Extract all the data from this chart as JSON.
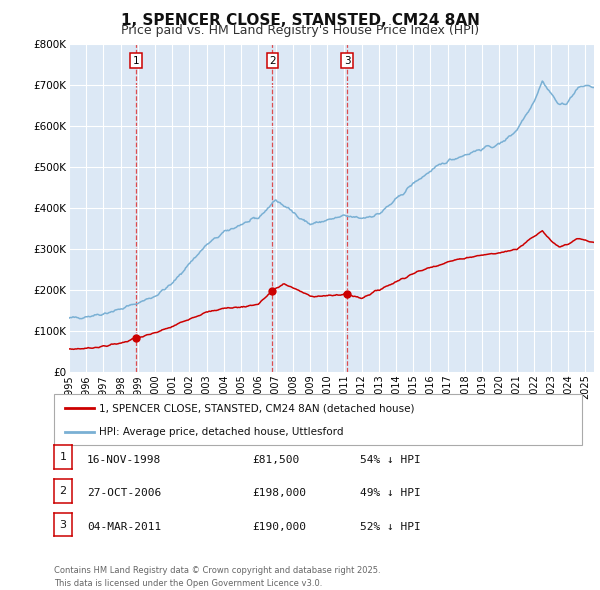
{
  "title": "1, SPENCER CLOSE, STANSTED, CM24 8AN",
  "subtitle": "Price paid vs. HM Land Registry's House Price Index (HPI)",
  "title_fontsize": 11,
  "subtitle_fontsize": 9,
  "background_color": "#ffffff",
  "plot_bg_color": "#dce8f5",
  "grid_color": "#ffffff",
  "red_line_color": "#cc0000",
  "blue_line_color": "#7ab0d4",
  "ylim": [
    0,
    800000
  ],
  "yticks": [
    0,
    100000,
    200000,
    300000,
    400000,
    500000,
    600000,
    700000,
    800000
  ],
  "ytick_labels": [
    "£0",
    "£100K",
    "£200K",
    "£300K",
    "£400K",
    "£500K",
    "£600K",
    "£700K",
    "£800K"
  ],
  "sale_dates_num": [
    1998.88,
    2006.82,
    2011.17
  ],
  "sale_prices": [
    81500,
    198000,
    190000
  ],
  "sale_labels": [
    "1",
    "2",
    "3"
  ],
  "legend_entries": [
    "1, SPENCER CLOSE, STANSTED, CM24 8AN (detached house)",
    "HPI: Average price, detached house, Uttlesford"
  ],
  "table_entries": [
    {
      "label": "1",
      "date": "16-NOV-1998",
      "price": "£81,500",
      "pct": "54% ↓ HPI"
    },
    {
      "label": "2",
      "date": "27-OCT-2006",
      "price": "£198,000",
      "pct": "49% ↓ HPI"
    },
    {
      "label": "3",
      "date": "04-MAR-2011",
      "price": "£190,000",
      "pct": "52% ↓ HPI"
    }
  ],
  "footnote": "Contains HM Land Registry data © Crown copyright and database right 2025.\nThis data is licensed under the Open Government Licence v3.0.",
  "xmin": 1995.0,
  "xmax": 2025.5
}
